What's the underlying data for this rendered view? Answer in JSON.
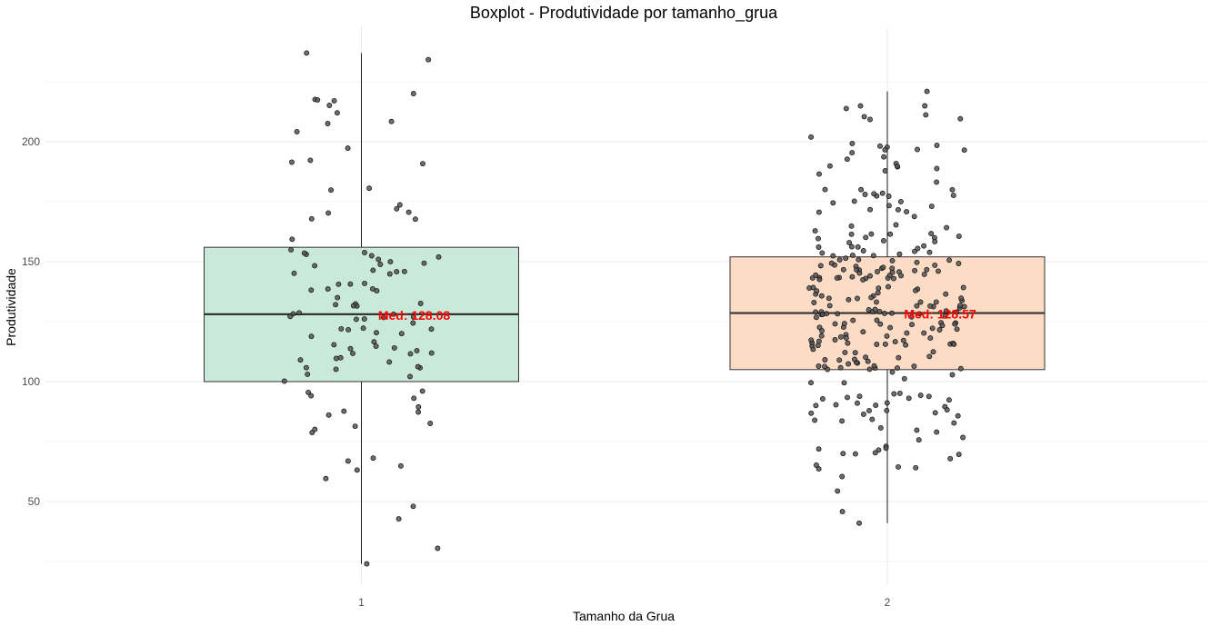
{
  "chart_data": {
    "type": "boxplot",
    "title": "Boxplot - Produtividade por tamanho_grua",
    "xlabel": "Tamanho da Grua",
    "ylabel": "Produtividade",
    "categories": [
      "1",
      "2"
    ],
    "ylim": [
      20,
      245
    ],
    "y_ticks": [
      50,
      100,
      150,
      200
    ],
    "grid": true,
    "boxes": [
      {
        "category": "1",
        "min": 24,
        "q1": 100,
        "median": 128.08,
        "q3": 156,
        "max": 237,
        "fill": "#c9eadb",
        "median_label": "Med: 128.08"
      },
      {
        "category": "2",
        "min": 41,
        "q1": 105,
        "median": 128.57,
        "q3": 152,
        "max": 221,
        "fill": "#fddcc6",
        "median_label": "Med: 128.57"
      }
    ],
    "n_points": [
      110,
      280
    ],
    "point_color": "#555555",
    "median_label_color": "#ff0000"
  }
}
